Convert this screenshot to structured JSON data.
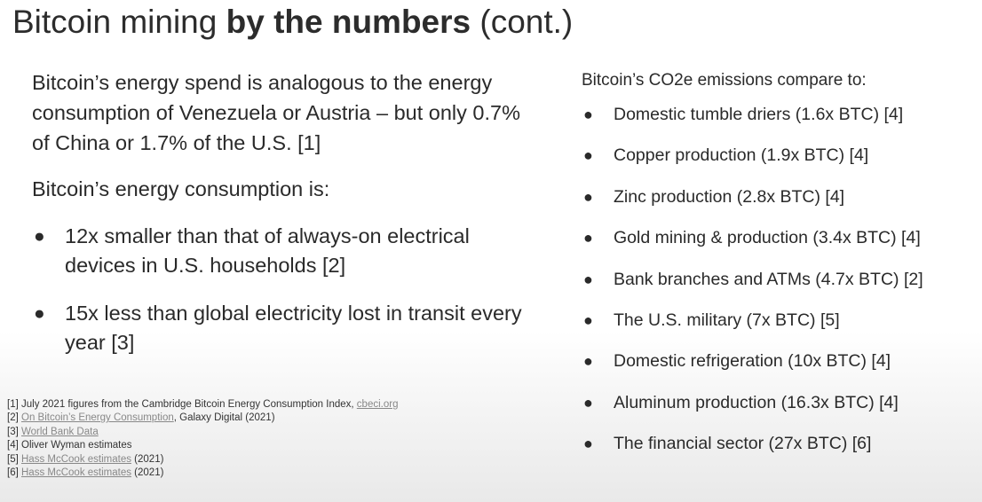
{
  "title": {
    "normal": "Bitcoin mining ",
    "bold": "by the numbers",
    "suffix": " (cont.)"
  },
  "left": {
    "intro": "Bitcoin’s energy spend is analogous to the energy consumption of Venezuela or Austria – but only 0.7% of China or 1.7% of the U.S. [1]",
    "consumption_heading": "Bitcoin’s energy consumption is:",
    "bullets": [
      "12x smaller than that of always-on electrical devices in U.S. households [2]",
      "15x less than global electricity lost in transit every year [3]"
    ]
  },
  "right": {
    "heading": "Bitcoin’s CO2e emissions compare to:",
    "items": [
      "Domestic tumble driers (1.6x BTC) [4]",
      "Copper production (1.9x BTC) [4]",
      "Zinc production (2.8x BTC) [4]",
      "Gold mining & production (3.4x BTC) [4]",
      "Bank branches and ATMs (4.7x BTC) [2]",
      "The U.S. military (7x BTC) [5]",
      "Domestic refrigeration (10x BTC) [4]",
      "Aluminum production (16.3x BTC) [4]",
      "The financial sector (27x BTC) [6]"
    ]
  },
  "references": [
    {
      "num": "[1]",
      "text": "July 2021 figures from the Cambridge Bitcoin Energy Consumption Index,",
      "link": "cbeci.org",
      "after": ""
    },
    {
      "num": "[2]",
      "text": "",
      "link": "On Bitcoin’s Energy Consumption",
      "after": ", Galaxy Digital (2021)"
    },
    {
      "num": "[3]",
      "text": "",
      "link": "World Bank Data",
      "after": ""
    },
    {
      "num": "[4]",
      "text": "Oliver Wyman estimates",
      "link": "",
      "after": ""
    },
    {
      "num": "[5]",
      "text": "",
      "link": "Hass McCook estimates",
      "after": " (2021)"
    },
    {
      "num": "[6]",
      "text": "",
      "link": "Hass McCook estimates",
      "after": " (2021)"
    }
  ],
  "bullet_glyph": "●",
  "colors": {
    "text": "#2a2a2a",
    "link": "#888888",
    "background": "#ffffff"
  }
}
